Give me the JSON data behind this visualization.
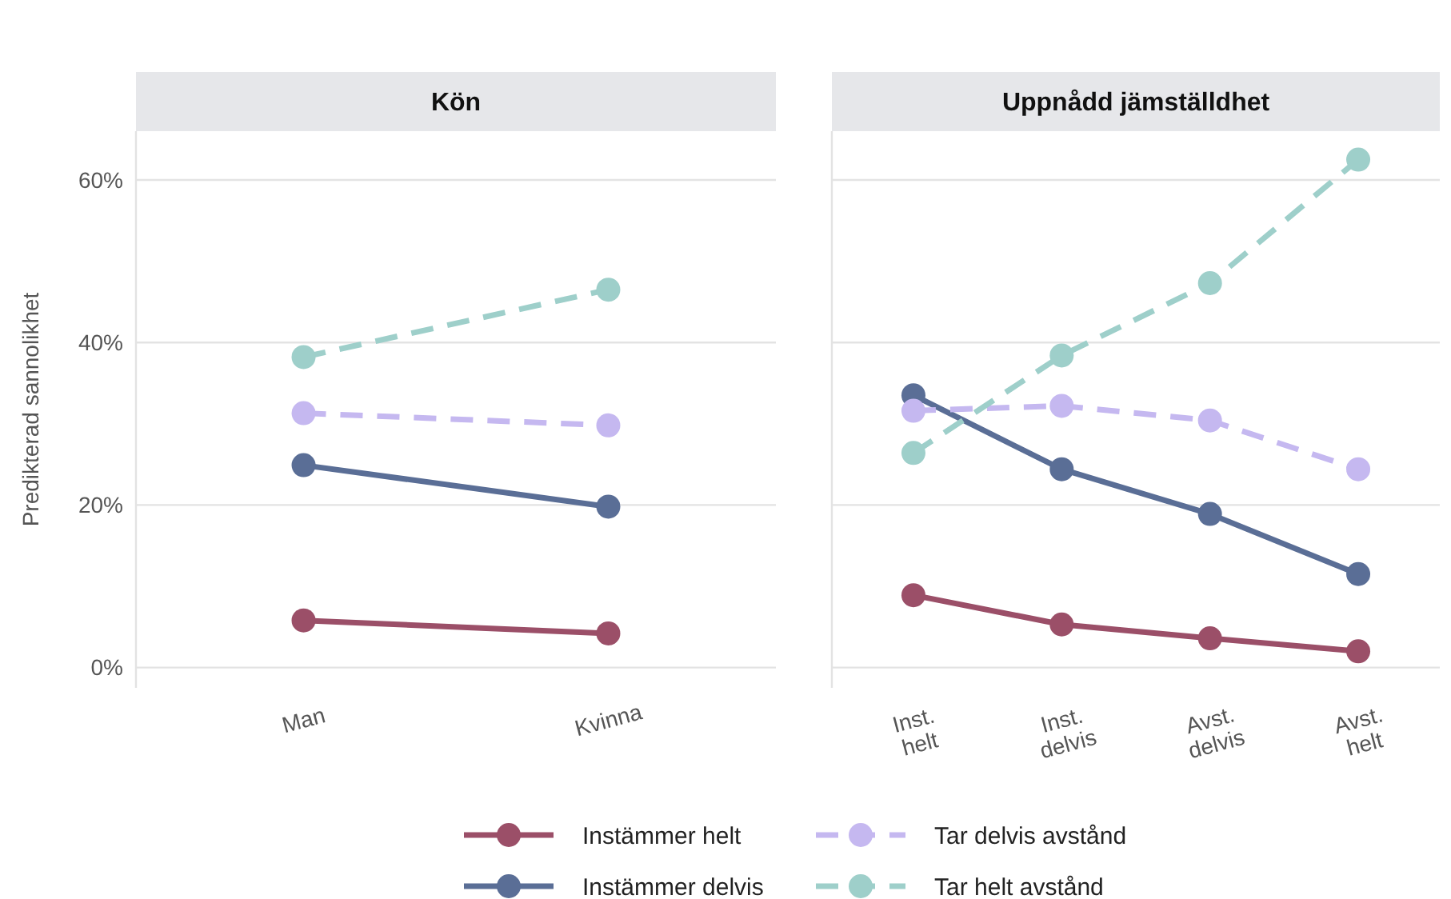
{
  "chart_data": [
    {
      "type": "line",
      "title": "Kön",
      "ylabel": "Predikterad sannolikhet",
      "categories": [
        "Man",
        "Kvinna"
      ],
      "ylim": [
        -2.5,
        66
      ],
      "yticks": [
        {
          "value": 0,
          "label": "0%"
        },
        {
          "value": 20,
          "label": "20%"
        },
        {
          "value": 40,
          "label": "40%"
        },
        {
          "value": 60,
          "label": "60%"
        }
      ],
      "grid": "y",
      "marker": "circle",
      "legend": "bottom",
      "series": [
        {
          "name": "Instämmer helt",
          "color": "#9b4f68",
          "line_style": "solid",
          "values": [
            5.8,
            4.2
          ]
        },
        {
          "name": "Instämmer delvis",
          "color": "#5a6e96",
          "line_style": "solid",
          "values": [
            24.9,
            19.8
          ]
        },
        {
          "name": "Tar delvis avstånd",
          "color": "#c5b8f0",
          "line_style": "dashed",
          "values": [
            31.3,
            29.8
          ]
        },
        {
          "name": "Tar helt avstånd",
          "color": "#9ecfca",
          "line_style": "dashed",
          "values": [
            38.2,
            46.5
          ]
        }
      ]
    },
    {
      "type": "line",
      "title": "Uppnådd jämställdhet",
      "categories": [
        "Inst. helt",
        "Inst. delvis",
        "Avst. delvis",
        "Avst. helt"
      ],
      "ylim": [
        -2.5,
        66
      ],
      "yticks": [
        0,
        20,
        40,
        60
      ],
      "tick_labels": "x",
      "grid": "y",
      "marker": "circle",
      "series": [
        {
          "color": "#9b4f68",
          "line_style": "solid",
          "values": [
            8.9,
            5.3,
            3.6,
            2.0
          ]
        },
        {
          "color": "#5a6e96",
          "line_style": "solid",
          "values": [
            33.5,
            24.4,
            18.9,
            11.5
          ]
        },
        {
          "color": "#c5b8f0",
          "line_style": "dashed",
          "values": [
            31.6,
            32.2,
            30.4,
            24.4
          ]
        },
        {
          "color": "#9ecfca",
          "line_style": "dashed",
          "values": [
            26.4,
            38.4,
            47.3,
            62.5
          ]
        }
      ]
    }
  ]
}
